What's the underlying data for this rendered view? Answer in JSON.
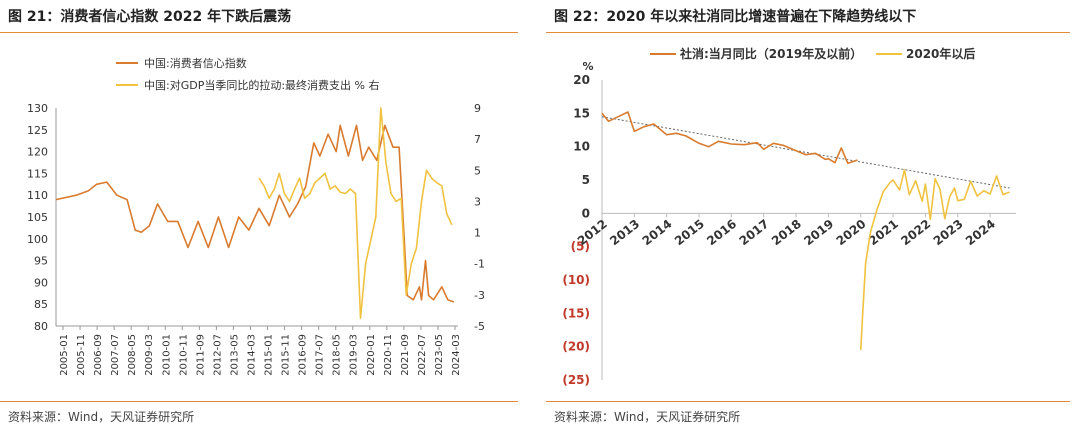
{
  "left": {
    "title": "图 21：消费者信心指数 2022 年下跌后震荡",
    "source": "资料来源：Wind，天风证券研究所",
    "chart_data": {
      "type": "line",
      "series": [
        {
          "name": "中国:消费者信心指数",
          "axis": "left",
          "color": "#d97b2e",
          "x": [
            2005.0,
            2006.0,
            2006.6,
            2007.0,
            2007.5,
            2008.0,
            2008.5,
            2008.9,
            2009.2,
            2009.6,
            2010.0,
            2010.5,
            2011.0,
            2011.5,
            2012.0,
            2012.5,
            2013.0,
            2013.5,
            2014.0,
            2014.5,
            2015.0,
            2015.5,
            2016.0,
            2016.5,
            2016.9,
            2017.3,
            2017.7,
            2018.0,
            2018.4,
            2018.8,
            2019.0,
            2019.4,
            2019.8,
            2020.1,
            2020.4,
            2020.8,
            2021.2,
            2021.6,
            2021.9,
            2022.15,
            2022.3,
            2022.6,
            2022.9,
            2023.0,
            2023.2,
            2023.35,
            2023.6,
            2024.0,
            2024.3,
            2024.6
          ],
          "values": [
            109,
            110,
            111,
            112.5,
            113,
            110,
            109,
            102,
            101.5,
            103,
            108,
            104,
            104,
            98,
            104,
            98,
            105,
            98,
            105,
            102,
            107,
            103,
            110,
            105,
            108,
            112,
            122,
            119,
            124,
            120,
            126,
            119,
            126,
            118,
            121,
            118,
            126,
            121,
            121,
            100,
            87,
            86,
            89,
            86,
            95,
            87,
            86,
            89,
            86,
            85.5
          ]
        },
        {
          "name": "中国:对GDP当季同比的拉动:最终消费支出 % 右",
          "axis": "right",
          "color": "#f0c23f",
          "x": [
            2015.0,
            2015.25,
            2015.5,
            2015.75,
            2016.0,
            2016.25,
            2016.5,
            2016.75,
            2017.0,
            2017.25,
            2017.5,
            2017.75,
            2018.0,
            2018.25,
            2018.5,
            2018.75,
            2019.0,
            2019.25,
            2019.5,
            2019.75,
            2020.0,
            2020.25,
            2020.5,
            2020.75,
            2021.0,
            2021.25,
            2021.5,
            2021.75,
            2022.0,
            2022.25,
            2022.5,
            2022.75,
            2023.0,
            2023.25,
            2023.5,
            2023.75,
            2024.0,
            2024.25,
            2024.5
          ],
          "values": [
            4.5,
            4.0,
            3.2,
            3.8,
            4.8,
            3.5,
            3.0,
            3.8,
            4.5,
            3.2,
            3.5,
            4.2,
            4.5,
            4.8,
            3.8,
            4.0,
            3.6,
            3.5,
            3.8,
            3.5,
            -4.5,
            -1.0,
            0.5,
            2.0,
            9.0,
            5.5,
            3.5,
            3.0,
            3.2,
            -3.0,
            -1.0,
            0.0,
            3.0,
            5.0,
            4.5,
            4.2,
            4.0,
            2.2,
            1.5
          ]
        }
      ],
      "x_tick_labels": [
        "2005-01",
        "2005-11",
        "2006-09",
        "2007-07",
        "2008-05",
        "2009-03",
        "2010-01",
        "2010-11",
        "2011-09",
        "2012-07",
        "2013-05",
        "2014-03",
        "2015-01",
        "2015-11",
        "2016-09",
        "2017-07",
        "2018-05",
        "2019-03",
        "2020-01",
        "2020-11",
        "2021-09",
        "2022-07",
        "2023-05",
        "2024-03"
      ],
      "x_range": [
        2005.0,
        2024.8
      ],
      "y_left": {
        "ylim": [
          80,
          130
        ],
        "ticks": [
          "80",
          "85",
          "90",
          "95",
          "100",
          "105",
          "110",
          "115",
          "120",
          "125",
          "130"
        ]
      },
      "y_right": {
        "ylim": [
          -5,
          9
        ],
        "ticks": [
          "-5",
          "-3",
          "-1",
          "1",
          "3",
          "5",
          "7",
          "9"
        ]
      },
      "legend": [
        {
          "label": "中国:消费者信心指数",
          "color": "#d97b2e"
        },
        {
          "label": "中国:对GDP当季同比的拉动:最终消费支出 % 右",
          "color": "#f0c23f"
        }
      ],
      "grid": false,
      "legend_position": "top-center"
    }
  },
  "right": {
    "title": "图 22：2020 年以来社消同比增速普遍在下降趋势线以下",
    "source": "资料来源：Wind，天风证券研究所",
    "chart_data": {
      "type": "line",
      "ylabel": "%",
      "series": [
        {
          "name": "社消:当月同比（2019年及以前）",
          "color": "#d97b2e",
          "x": [
            2012.0,
            2012.2,
            2012.5,
            2012.8,
            2013.0,
            2013.3,
            2013.6,
            2014.0,
            2014.3,
            2014.6,
            2015.0,
            2015.3,
            2015.6,
            2016.0,
            2016.4,
            2016.8,
            2017.0,
            2017.3,
            2017.6,
            2018.0,
            2018.3,
            2018.6,
            2018.9,
            2019.0,
            2019.2,
            2019.4,
            2019.6,
            2019.9
          ],
          "values": [
            15,
            13.8,
            14.5,
            15.2,
            12.3,
            13.0,
            13.4,
            11.8,
            12.0,
            11.6,
            10.5,
            10.0,
            10.8,
            10.4,
            10.3,
            10.6,
            9.6,
            10.5,
            10.2,
            9.4,
            8.8,
            9.0,
            8.1,
            8.2,
            7.6,
            9.8,
            7.5,
            8.0
          ]
        },
        {
          "name": "2020年以后",
          "color": "#f0c23f",
          "x": [
            2020.0,
            2020.05,
            2020.15,
            2020.3,
            2020.5,
            2020.7,
            2020.9,
            2021.0,
            2021.2,
            2021.35,
            2021.5,
            2021.7,
            2021.9,
            2022.0,
            2022.15,
            2022.3,
            2022.45,
            2022.6,
            2022.75,
            2022.9,
            2023.0,
            2023.2,
            2023.4,
            2023.6,
            2023.8,
            2024.0,
            2024.2,
            2024.4,
            2024.6
          ],
          "values": [
            -20.5,
            -15.8,
            -7.5,
            -2.8,
            0.5,
            3.3,
            4.6,
            5.0,
            3.5,
            6.5,
            2.8,
            4.9,
            1.8,
            4.4,
            -0.9,
            5.2,
            3.6,
            -0.8,
            2.5,
            3.8,
            1.9,
            2.1,
            4.8,
            2.6,
            3.4,
            2.9,
            5.6,
            2.8,
            3.2
          ]
        }
      ],
      "trend": {
        "x": [
          2012.0,
          2024.6
        ],
        "values": [
          14.5,
          3.8
        ],
        "style": "dotted"
      },
      "x_tick_labels": [
        "2012",
        "2013",
        "2014",
        "2015",
        "2016",
        "2017",
        "2018",
        "2019",
        "2020",
        "2021",
        "2022",
        "2023",
        "2024"
      ],
      "x_range": [
        2012.0,
        2024.8
      ],
      "ylim": [
        -25,
        20
      ],
      "y_ticks": [
        "20",
        "15",
        "10",
        "5",
        "0",
        "(5)",
        "(10)",
        "(15)",
        "(20)",
        "(25)"
      ],
      "legend": [
        {
          "label": "社消:当月同比（2019年及以前）",
          "color": "#d97b2e"
        },
        {
          "label": "2020年以后",
          "color": "#f0c23f"
        }
      ],
      "grid": false,
      "legend_position": "top-center"
    }
  }
}
